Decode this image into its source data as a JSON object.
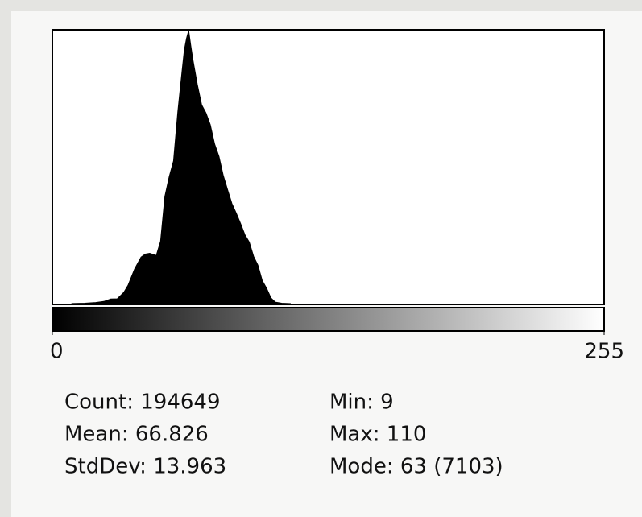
{
  "chart_data": {
    "type": "area",
    "color": "#000000",
    "x": [
      9,
      15,
      20,
      24,
      27,
      30,
      33,
      35,
      38,
      41,
      43,
      45,
      47,
      48,
      50,
      52,
      54,
      56,
      58,
      60,
      61,
      62,
      63,
      64,
      65,
      67,
      69,
      71,
      73,
      75,
      77,
      79,
      81,
      83,
      85,
      87,
      89,
      91,
      93,
      95,
      97,
      99,
      101,
      103,
      106,
      110
    ],
    "values": [
      2,
      10,
      30,
      60,
      120,
      125,
      290,
      480,
      900,
      1210,
      1290,
      1310,
      1270,
      1250,
      1620,
      2790,
      3300,
      3710,
      5000,
      6080,
      6600,
      6900,
      7103,
      6700,
      6330,
      5700,
      5170,
      4960,
      4650,
      4150,
      3830,
      3330,
      2960,
      2600,
      2350,
      2080,
      1790,
      1600,
      1230,
      1000,
      600,
      400,
      150,
      40,
      10,
      1
    ],
    "xlim": [
      0,
      255
    ],
    "ylim": [
      0,
      7103
    ],
    "xticks": [
      0,
      255
    ],
    "stats_left": [
      "Count: 194649",
      "Mean: 66.826",
      "StdDev: 13.963"
    ],
    "stats_right": [
      "Min: 9",
      "Max: 110",
      "Mode: 63 (7103)"
    ]
  }
}
